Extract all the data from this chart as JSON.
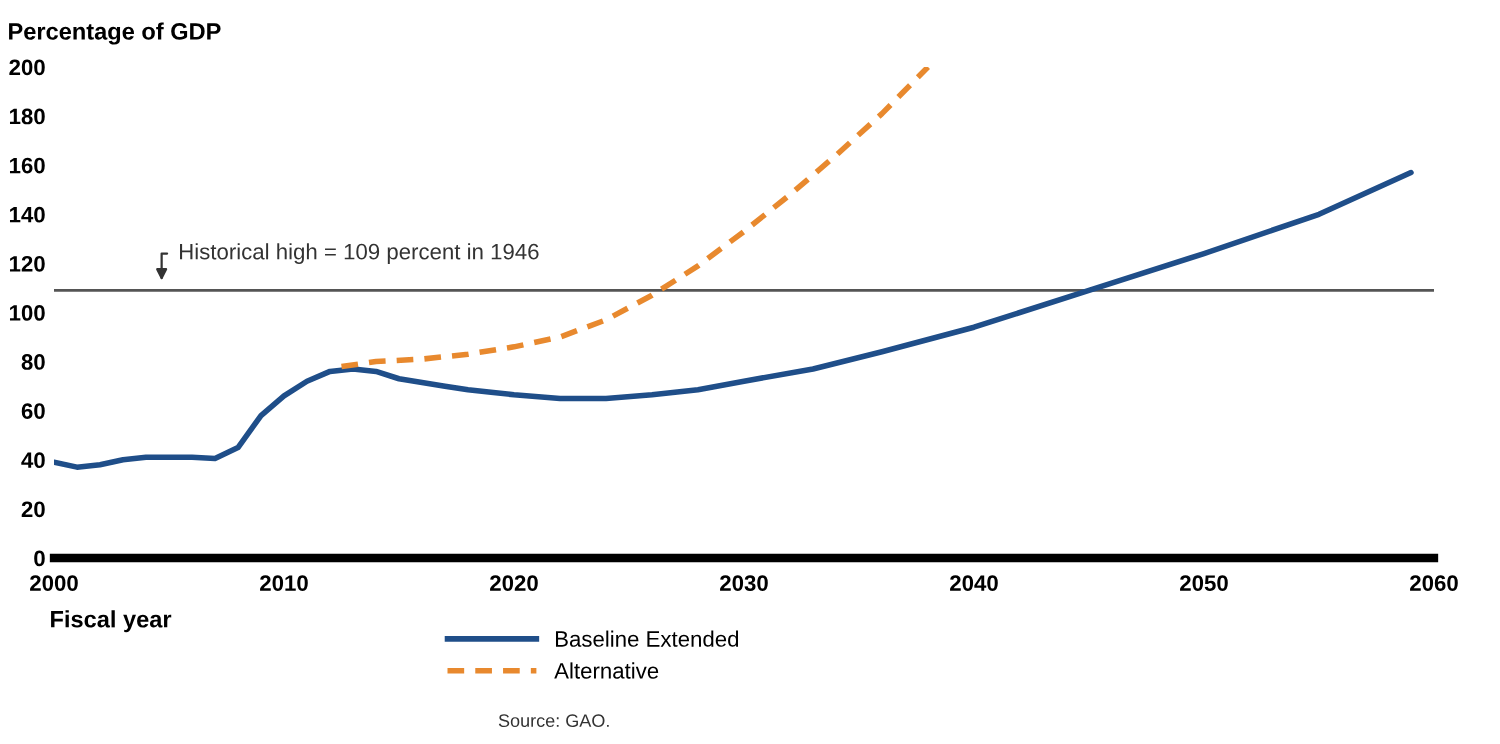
{
  "chart_data": {
    "type": "line",
    "ylabel": "Percentage of GDP",
    "xlabel": "Fiscal year",
    "xlim": [
      2000,
      2060
    ],
    "xticks": [
      2000,
      2010,
      2020,
      2030,
      2040,
      2050,
      2060
    ],
    "ylim": [
      0,
      200
    ],
    "yticks": [
      0,
      20,
      40,
      60,
      80,
      100,
      120,
      140,
      160,
      180,
      200
    ],
    "grid": false,
    "legend": "bottom",
    "series": [
      {
        "name": "Baseline Extended",
        "color": "#1f4e89",
        "line_style": "solid",
        "x": [
          2000,
          2001,
          2002,
          2003,
          2004,
          2005,
          2006,
          2007,
          2008,
          2009,
          2010,
          2011,
          2012,
          2013,
          2014,
          2015,
          2016,
          2017,
          2018,
          2019,
          2020,
          2022,
          2024,
          2026,
          2028,
          2030,
          2033,
          2036,
          2040,
          2045,
          2050,
          2055,
          2059
        ],
        "values": [
          39,
          37,
          38,
          40,
          41,
          41,
          41,
          40.5,
          45,
          58,
          66,
          72,
          76,
          77,
          76,
          73,
          71.5,
          70,
          68.5,
          67.5,
          66.5,
          65,
          65,
          66.5,
          68.5,
          72,
          77,
          84,
          94,
          109,
          124,
          140,
          157
        ]
      },
      {
        "name": "Alternative",
        "color": "#e8892e",
        "line_style": "dashed",
        "x": [
          2012.5,
          2014,
          2016,
          2018,
          2020,
          2022,
          2024,
          2026,
          2028,
          2030,
          2032,
          2034,
          2036,
          2038
        ],
        "values": [
          78,
          80,
          81,
          83,
          86,
          90,
          97,
          107,
          119,
          133,
          148,
          164,
          181,
          200
        ]
      }
    ],
    "ref_lines": [
      {
        "axis": "y",
        "value": 109,
        "label": "Historical high = 109 percent in 1946",
        "color": "#555555"
      }
    ],
    "annotations": [
      "Source: GAO."
    ]
  }
}
